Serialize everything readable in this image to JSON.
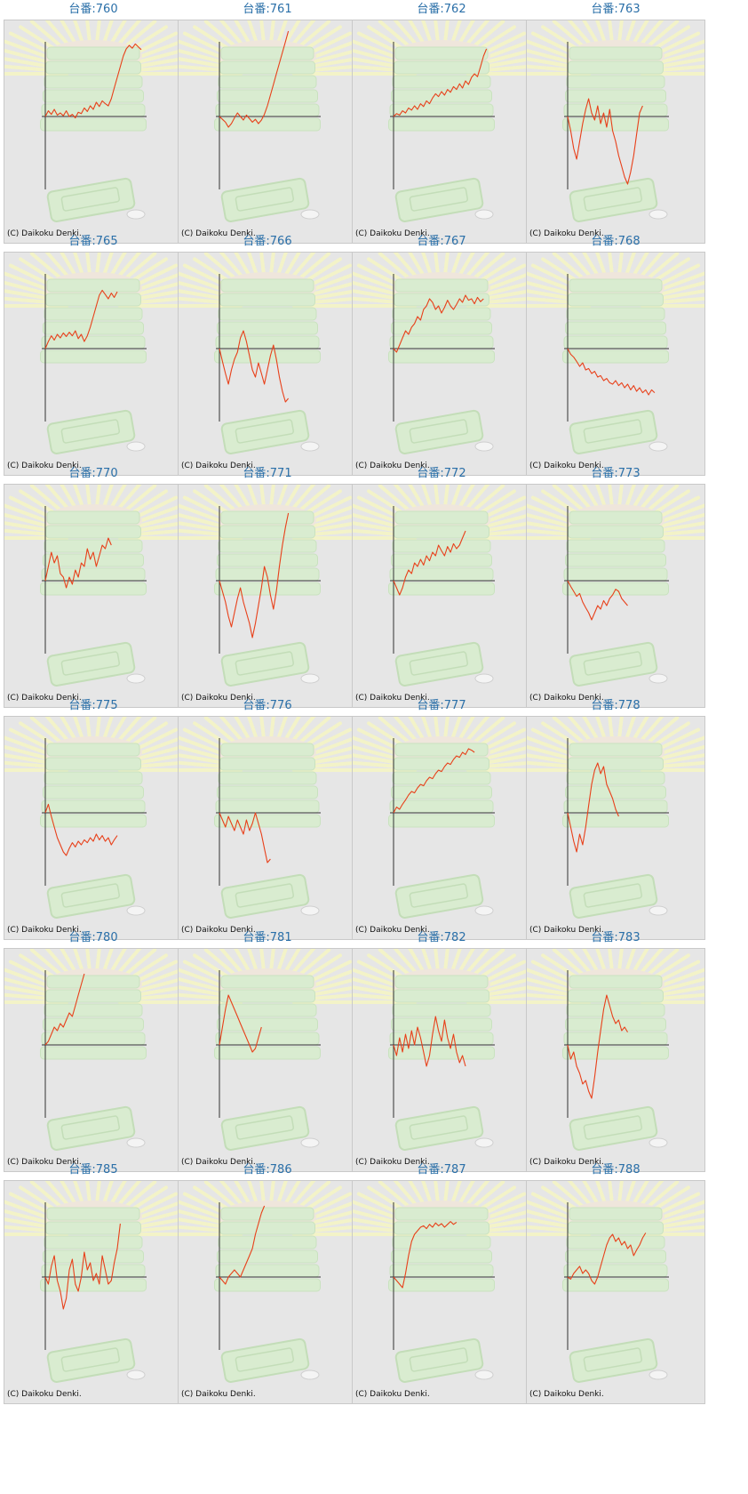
{
  "copyright": "(C) Daikoku Denki.",
  "colors": {
    "title": "#2a6fa8",
    "line": "#e8401a",
    "axis": "#333333",
    "background": "#e6e6e6"
  },
  "chart_data": [
    {
      "title": "台番:760",
      "type": "line",
      "values": [
        0,
        8,
        3,
        10,
        2,
        5,
        1,
        8,
        0,
        3,
        -2,
        6,
        4,
        12,
        7,
        15,
        10,
        20,
        14,
        22,
        18,
        15,
        25,
        40,
        55,
        70,
        85,
        95,
        100,
        96,
        102,
        98,
        94
      ]
    },
    {
      "title": "台番:761",
      "type": "line",
      "values": [
        0,
        -4,
        -8,
        -15,
        -10,
        -2,
        5,
        0,
        -5,
        2,
        -3,
        -8,
        -4,
        -10,
        -5,
        3,
        15,
        30,
        45,
        60,
        75,
        90,
        105,
        120
      ]
    },
    {
      "title": "台番:762",
      "type": "line",
      "values": [
        0,
        4,
        2,
        8,
        5,
        12,
        9,
        15,
        10,
        18,
        14,
        22,
        18,
        26,
        32,
        28,
        35,
        30,
        38,
        34,
        42,
        38,
        46,
        40,
        50,
        45,
        55,
        60,
        56,
        70,
        85,
        95
      ]
    },
    {
      "title": "台番:763",
      "type": "line",
      "values": [
        0,
        -20,
        -45,
        -60,
        -35,
        -10,
        10,
        25,
        5,
        -5,
        15,
        -10,
        5,
        -15,
        10,
        -20,
        -35,
        -55,
        -70,
        -85,
        -95,
        -78,
        -55,
        -25,
        5,
        15
      ]
    },
    {
      "title": "台番:765",
      "type": "line",
      "values": [
        0,
        10,
        18,
        12,
        20,
        15,
        22,
        17,
        23,
        18,
        25,
        14,
        20,
        10,
        18,
        30,
        45,
        60,
        75,
        82,
        76,
        70,
        78,
        72,
        80
      ]
    },
    {
      "title": "台番:766",
      "type": "line",
      "values": [
        0,
        -18,
        -35,
        -50,
        -30,
        -15,
        -5,
        15,
        25,
        10,
        -10,
        -30,
        -40,
        -20,
        -35,
        -50,
        -30,
        -10,
        5,
        -15,
        -40,
        -60,
        -75,
        -70
      ]
    },
    {
      "title": "台番:767",
      "type": "line",
      "values": [
        0,
        -5,
        5,
        15,
        25,
        20,
        30,
        35,
        45,
        40,
        55,
        60,
        70,
        65,
        55,
        60,
        50,
        58,
        68,
        60,
        55,
        62,
        70,
        65,
        75,
        68,
        70,
        63,
        72,
        66,
        70
      ]
    },
    {
      "title": "台番:768",
      "type": "line",
      "values": [
        0,
        -8,
        -12,
        -18,
        -25,
        -20,
        -30,
        -28,
        -35,
        -32,
        -40,
        -38,
        -45,
        -42,
        -48,
        -50,
        -45,
        -52,
        -48,
        -55,
        -50,
        -58,
        -52,
        -60,
        -55,
        -62,
        -58,
        -65,
        -58,
        -62
      ]
    },
    {
      "title": "台番:770",
      "type": "line",
      "values": [
        0,
        20,
        40,
        25,
        35,
        10,
        5,
        -10,
        5,
        -5,
        15,
        5,
        25,
        20,
        45,
        30,
        40,
        20,
        35,
        50,
        45,
        60,
        50
      ]
    },
    {
      "title": "台番:771",
      "type": "line",
      "values": [
        0,
        -15,
        -30,
        -50,
        -65,
        -45,
        -25,
        -10,
        -30,
        -45,
        -60,
        -80,
        -60,
        -35,
        -10,
        20,
        5,
        -20,
        -40,
        -15,
        20,
        50,
        75,
        95
      ]
    },
    {
      "title": "台番:772",
      "type": "line",
      "values": [
        0,
        -10,
        -20,
        -10,
        5,
        15,
        10,
        25,
        20,
        30,
        22,
        35,
        28,
        40,
        35,
        50,
        42,
        35,
        48,
        40,
        52,
        45,
        50,
        60,
        70
      ]
    },
    {
      "title": "台番:773",
      "type": "line",
      "values": [
        0,
        -8,
        -15,
        -22,
        -18,
        -30,
        -38,
        -45,
        -55,
        -45,
        -35,
        -40,
        -28,
        -35,
        -25,
        -20,
        -12,
        -15,
        -25,
        -30,
        -35
      ]
    },
    {
      "title": "台番:775",
      "type": "line",
      "values": [
        0,
        12,
        -5,
        -20,
        -35,
        -45,
        -55,
        -60,
        -50,
        -42,
        -48,
        -40,
        -45,
        -38,
        -42,
        -35,
        -40,
        -30,
        -38,
        -32,
        -40,
        -35,
        -45,
        -38,
        -32
      ]
    },
    {
      "title": "台番:776",
      "type": "line",
      "values": [
        0,
        -10,
        -20,
        -5,
        -15,
        -25,
        -10,
        -20,
        -30,
        -10,
        -25,
        -15,
        0,
        -15,
        -30,
        -50,
        -70,
        -65
      ]
    },
    {
      "title": "台番:777",
      "type": "line",
      "values": [
        0,
        8,
        5,
        12,
        18,
        25,
        30,
        28,
        35,
        40,
        38,
        45,
        50,
        48,
        55,
        60,
        58,
        65,
        70,
        68,
        75,
        80,
        78,
        85,
        82,
        90,
        88,
        85
      ]
    },
    {
      "title": "台番:778",
      "type": "line",
      "values": [
        0,
        -20,
        -40,
        -55,
        -30,
        -45,
        -20,
        10,
        40,
        60,
        70,
        55,
        65,
        40,
        30,
        20,
        5,
        -5
      ]
    },
    {
      "title": "台番:780",
      "type": "line",
      "values": [
        0,
        5,
        15,
        25,
        20,
        30,
        25,
        35,
        45,
        40,
        55,
        70,
        85,
        100
      ]
    },
    {
      "title": "台番:781",
      "type": "line",
      "values": [
        0,
        25,
        50,
        70,
        60,
        50,
        40,
        30,
        20,
        10,
        0,
        -10,
        -5,
        10,
        25
      ]
    },
    {
      "title": "台番:782",
      "type": "line",
      "values": [
        0,
        -15,
        10,
        -10,
        15,
        -5,
        20,
        0,
        25,
        10,
        -10,
        -30,
        -15,
        15,
        40,
        20,
        5,
        35,
        10,
        -5,
        15,
        -10,
        -25,
        -15,
        -30
      ]
    },
    {
      "title": "台番:783",
      "type": "line",
      "values": [
        0,
        -20,
        -10,
        -30,
        -40,
        -55,
        -50,
        -65,
        -75,
        -45,
        -10,
        20,
        50,
        70,
        55,
        40,
        30,
        35,
        20,
        25,
        18
      ]
    },
    {
      "title": "台番:785",
      "type": "line",
      "values": [
        0,
        -10,
        15,
        30,
        -5,
        -20,
        -45,
        -30,
        10,
        25,
        -10,
        -20,
        0,
        35,
        10,
        20,
        -5,
        5,
        -10,
        30,
        10,
        -10,
        -5,
        20,
        40,
        75
      ]
    },
    {
      "title": "台番:786",
      "type": "line",
      "values": [
        0,
        -5,
        -10,
        0,
        5,
        10,
        5,
        0,
        10,
        20,
        30,
        40,
        60,
        75,
        90,
        100
      ]
    },
    {
      "title": "台番:787",
      "type": "line",
      "values": [
        0,
        -5,
        -10,
        -15,
        5,
        30,
        50,
        60,
        65,
        70,
        72,
        68,
        74,
        70,
        76,
        72,
        75,
        70,
        74,
        78,
        74,
        77
      ]
    },
    {
      "title": "台番:788",
      "type": "line",
      "values": [
        0,
        -3,
        5,
        10,
        15,
        5,
        10,
        5,
        -5,
        -10,
        0,
        15,
        30,
        45,
        55,
        60,
        50,
        55,
        45,
        50,
        40,
        45,
        30,
        38,
        45,
        55,
        62
      ]
    }
  ]
}
